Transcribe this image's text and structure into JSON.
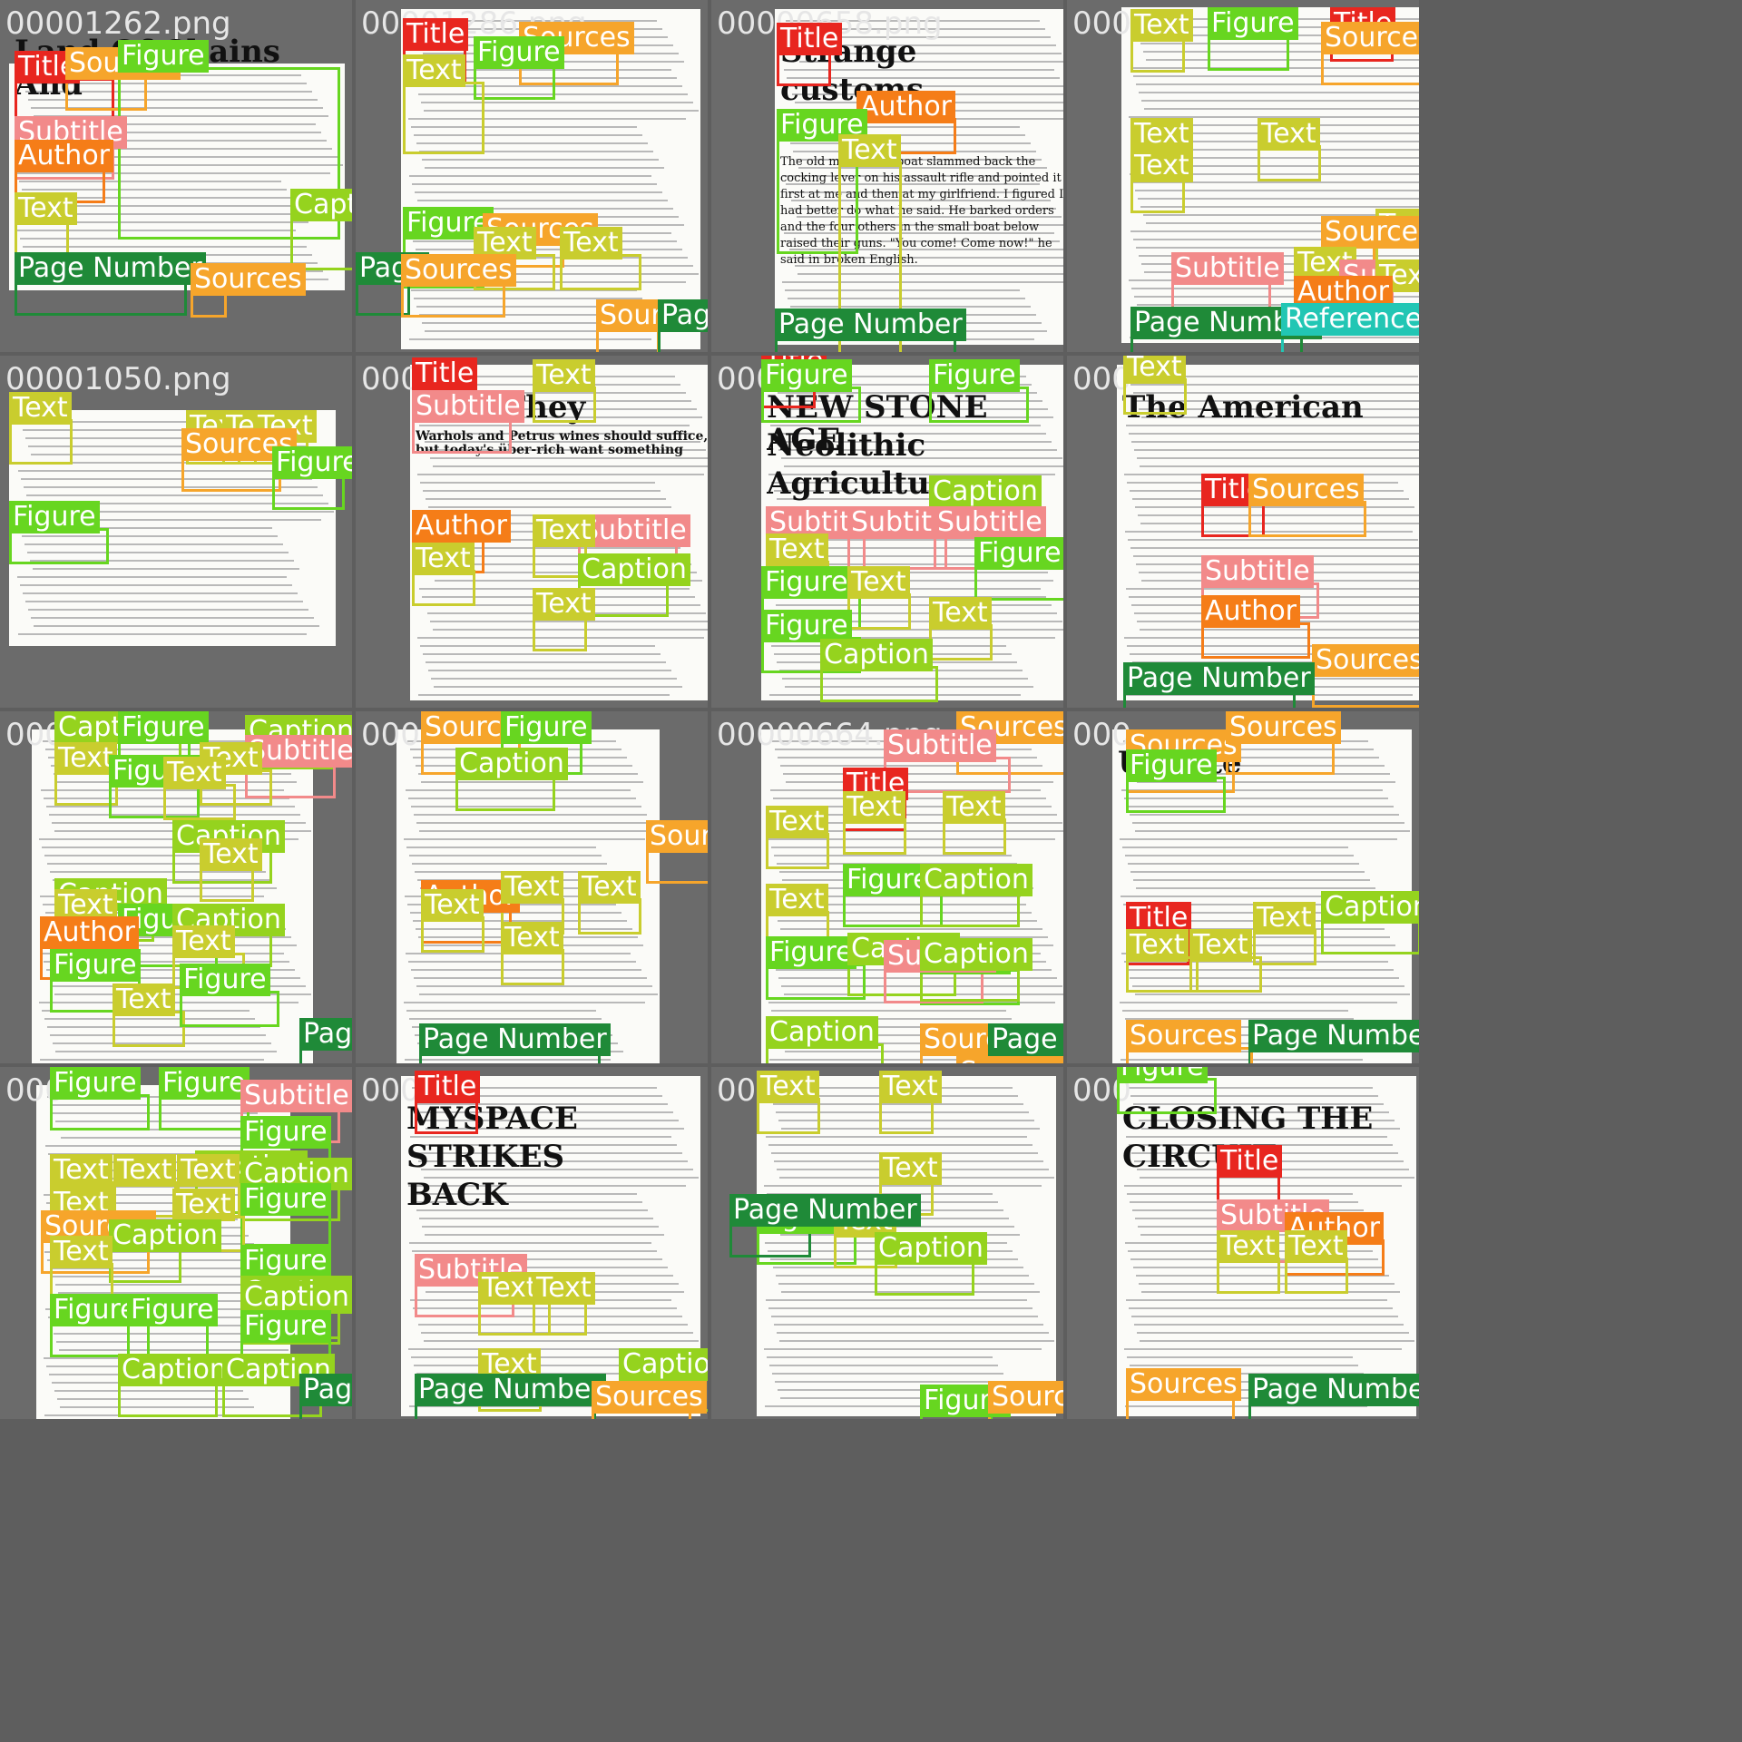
{
  "colors": {
    "title": "#e8261f",
    "text": "#c9cd2e",
    "figure": "#67d620",
    "caption": "#95d31e",
    "sources": "#f6a52b",
    "subtitle": "#f28a8a",
    "author": "#f57d18",
    "page_number": "#1f8a38",
    "references": "#22c6b4"
  },
  "cells": [
    {
      "filename": "00001262.png",
      "page_text": "Land Of Chains And",
      "labels": [
        "Title",
        "Sources",
        "Figure",
        "Subtitle",
        "Author",
        "Text",
        "Caption",
        "Page Number",
        "Sources"
      ]
    },
    {
      "filename": "00001286.png",
      "labels": [
        "Title",
        "Sources",
        "Figure",
        "Text",
        "Figure",
        "Sources",
        "Text",
        "Text",
        "Page",
        "Sources",
        "Source",
        "Page Number"
      ]
    },
    {
      "filename": "00000658.png",
      "page_text_1": "Strange",
      "page_text_2": "customs",
      "body_text": "The old man in the boat slammed back the cocking lever on his assault rifle and pointed it first at me and then at my girlfriend. I figured I had better do what he said. He barked orders and the four others in the small boat below raised their guns. \"You come! Come now!\" he said in broken English.",
      "labels": [
        "Title",
        "Author",
        "Figure",
        "Text",
        "Page Number"
      ]
    },
    {
      "filename": "0000",
      "labels": [
        "Text",
        "Figure",
        "Title",
        "Sources",
        "Text",
        "Text",
        "Text",
        "Text",
        "Sources",
        "Subtitle",
        "Text",
        "Subtitle",
        "Text",
        "Author",
        "Page Number",
        "References"
      ]
    },
    {
      "filename": "00001050.png",
      "labels": [
        "Text",
        "Text",
        "Text",
        "Text",
        "Sources",
        "Figure",
        "Figure"
      ]
    },
    {
      "filename": "0000",
      "page_text_1": "How They",
      "page_text_2": "Warhols and Petrus wines should suffice, but today's über-rich want something",
      "labels": [
        "Title",
        "Text",
        "Subtitle",
        "Author",
        "Text",
        "Subtitle",
        "Text",
        "Caption",
        "Text"
      ]
    },
    {
      "filename": "000",
      "page_text_1": "NEW STONE AGE",
      "page_text_2": "Neolithic",
      "page_text_3": "Agriculture",
      "labels": [
        "Title",
        "Figure",
        "Figure",
        "Caption",
        "Subtitle",
        "Subtitle",
        "Subtitle",
        "Text",
        "Figure",
        "Figure",
        "Text",
        "Text",
        "Figure",
        "Caption"
      ]
    },
    {
      "filename": "000",
      "page_text": "The American",
      "labels": [
        "Text",
        "Title",
        "Sources",
        "Subtitle",
        "Author",
        "Sources",
        "Page Number"
      ]
    },
    {
      "filename": "000",
      "labels": [
        "Caption",
        "Figure",
        "Text",
        "Caption",
        "Subtitle",
        "Text",
        "Figure",
        "Text",
        "Caption",
        "Text",
        "Caption",
        "Text",
        "Figure",
        "Caption",
        "Author",
        "Text",
        "Figure",
        "Text",
        "Figure",
        "Page Number"
      ]
    },
    {
      "filename": "000",
      "labels": [
        "Sources",
        "Figure",
        "Caption",
        "Sources",
        "Author",
        "Text",
        "Text",
        "Text",
        "Text",
        "Page Number"
      ]
    },
    {
      "filename": "00000664.png",
      "labels": [
        "Sources",
        "Subtitle",
        "Title",
        "Text",
        "Text",
        "Text",
        "Figure",
        "Caption",
        "Text",
        "Figure",
        "Caption",
        "Figure",
        "Caption",
        "Subtitle",
        "Caption",
        "Sources",
        "Page Number",
        "Sources"
      ]
    },
    {
      "filename": "000",
      "page_text": "Update",
      "labels": [
        "Sources",
        "Sources",
        "Figure",
        "Title",
        "Text",
        "Caption",
        "Text",
        "Text",
        "Page Number",
        "Sources"
      ]
    },
    {
      "filename": "000",
      "labels": [
        "Figure",
        "Figure",
        "Subtitle",
        "Figure",
        "Caption",
        "Caption",
        "Text",
        "Text",
        "Text",
        "Figure",
        "Text",
        "Text",
        "Sources",
        "Caption",
        "Text",
        "Figure",
        "Caption",
        "Figure",
        "Figure",
        "Caption",
        "Figure",
        "Caption",
        "Caption",
        "Page Number"
      ]
    },
    {
      "filename": "000",
      "page_text_1": "MYSPACE",
      "page_text_2": "STRIKES",
      "page_text_3": "BACK",
      "labels": [
        "Title",
        "Subtitle",
        "Text",
        "Text",
        "Text",
        "Caption",
        "Page Number",
        "Sources"
      ]
    },
    {
      "filename": "000",
      "labels": [
        "Text",
        "Text",
        "Text",
        "Figure",
        "Text",
        "Caption",
        "Figure",
        "Sources",
        "Page Number"
      ]
    },
    {
      "filename": "000",
      "page_text_1": "CLOSING THE",
      "page_text_2": "CIRCUIT",
      "labels": [
        "Figure",
        "Title",
        "Subtitle",
        "Author",
        "Text",
        "Text",
        "Sources",
        "Page Number"
      ]
    }
  ]
}
